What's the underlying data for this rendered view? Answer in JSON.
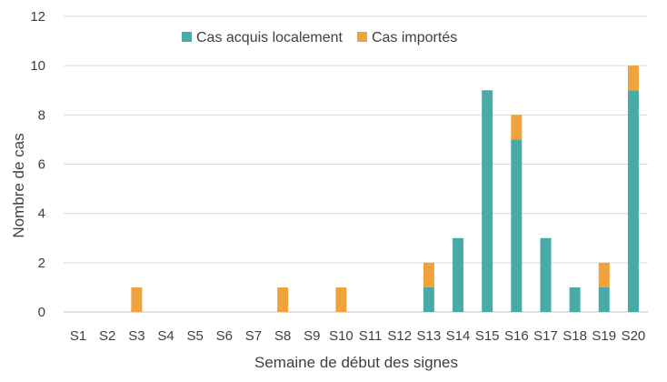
{
  "chart_data": {
    "type": "bar",
    "stacked": true,
    "title": "",
    "xlabel": "Semaine de début des signes",
    "ylabel": "Nombre de cas",
    "ylim": [
      0,
      12
    ],
    "yticks": [
      0,
      2,
      4,
      6,
      8,
      10,
      12
    ],
    "grid": true,
    "legend_position": "top-right",
    "categories": [
      "S1",
      "S2",
      "S3",
      "S4",
      "S5",
      "S6",
      "S7",
      "S8",
      "S9",
      "S10",
      "S11",
      "S12",
      "S13",
      "S14",
      "S15",
      "S16",
      "S17",
      "S18",
      "S19",
      "S20"
    ],
    "series": [
      {
        "name": "Cas acquis localement",
        "color": "#4aaba6",
        "values": [
          0,
          0,
          0,
          0,
          0,
          0,
          0,
          0,
          0,
          0,
          0,
          0,
          1,
          3,
          9,
          7,
          3,
          1,
          1,
          9
        ]
      },
      {
        "name": "Cas importés",
        "color": "#f0a23c",
        "values": [
          0,
          0,
          1,
          0,
          0,
          0,
          0,
          1,
          0,
          1,
          0,
          0,
          1,
          0,
          0,
          1,
          0,
          0,
          1,
          1
        ]
      }
    ]
  }
}
